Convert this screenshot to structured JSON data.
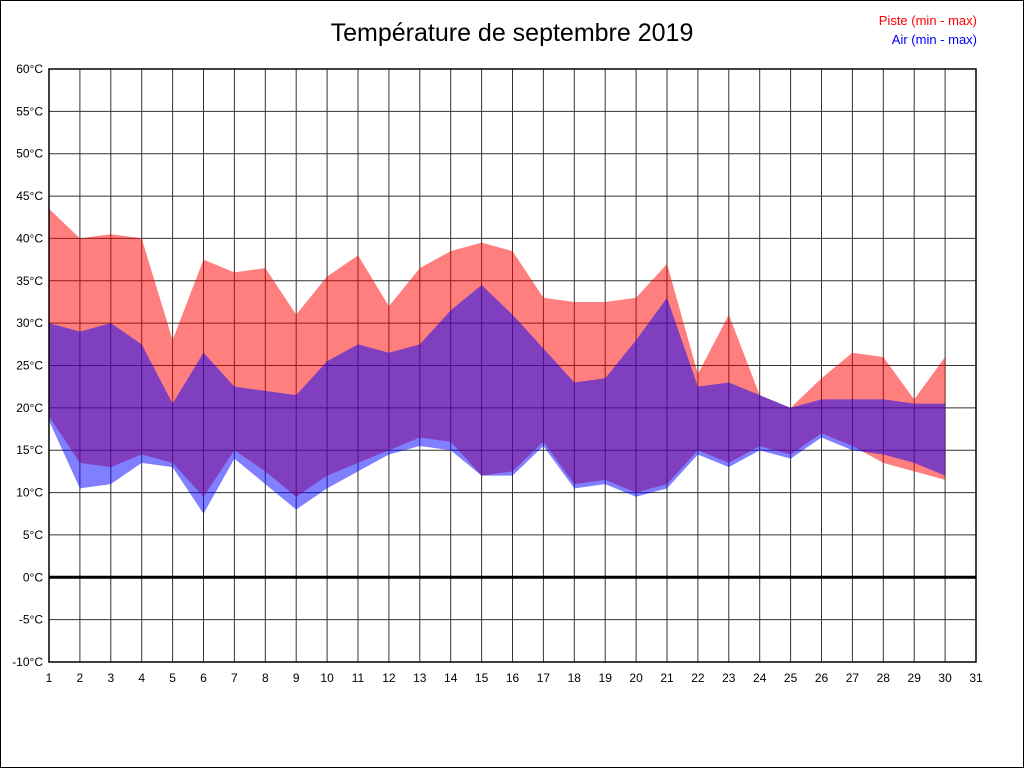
{
  "page": {
    "title": "Température de septembre 2019"
  },
  "legend": {
    "piste_label": "Piste (min - max)",
    "air_label": "Air (min - max)"
  },
  "chart_data": {
    "type": "area",
    "title": "Température de septembre 2019",
    "x_days": [
      1,
      2,
      3,
      4,
      5,
      6,
      7,
      8,
      9,
      10,
      11,
      12,
      13,
      14,
      15,
      16,
      17,
      18,
      19,
      20,
      21,
      22,
      23,
      24,
      25,
      26,
      27,
      28,
      29,
      30
    ],
    "x_axis_ticks": [
      1,
      2,
      3,
      4,
      5,
      6,
      7,
      8,
      9,
      10,
      11,
      12,
      13,
      14,
      15,
      16,
      17,
      18,
      19,
      20,
      21,
      22,
      23,
      24,
      25,
      26,
      27,
      28,
      29,
      30,
      31
    ],
    "y_ticks": [
      60,
      55,
      50,
      45,
      40,
      35,
      30,
      25,
      20,
      15,
      10,
      5,
      0,
      -5,
      -10
    ],
    "y_tick_suffix": "°C",
    "ylim": [
      -10,
      60
    ],
    "grid": true,
    "legend_position": "top-right",
    "zero_line": true,
    "series": [
      {
        "name": "Piste (min - max)",
        "color": "#ff0000",
        "fill_opacity": 0.5,
        "max": [
          43.5,
          40,
          40.5,
          40,
          28,
          37.5,
          36,
          36.5,
          31,
          35.5,
          38,
          32,
          36.5,
          38.5,
          39.5,
          38.5,
          33,
          32.5,
          32.5,
          33,
          37,
          24,
          31,
          21.5,
          20,
          23.5,
          26.5,
          26,
          21,
          26
        ],
        "min": [
          19,
          13.5,
          13,
          14.5,
          13.5,
          9.5,
          15,
          12.5,
          9.5,
          12,
          13.5,
          15,
          16.5,
          16,
          12,
          12.5,
          16,
          11,
          11.5,
          10,
          11,
          15,
          13.5,
          15.5,
          14.5,
          17,
          15.5,
          13.5,
          12.5,
          11.5
        ]
      },
      {
        "name": "Air (min - max)",
        "color": "#0000ff",
        "fill_opacity": 0.5,
        "max": [
          30,
          29,
          30,
          27.5,
          20.5,
          26.5,
          22.5,
          22,
          21.5,
          25.5,
          27.5,
          26.5,
          27.5,
          31.5,
          34.5,
          31,
          27,
          23,
          23.5,
          28,
          33,
          22.5,
          23,
          21.5,
          20,
          21,
          21,
          21,
          20.5,
          20.5
        ],
        "min": [
          18.5,
          10.5,
          11,
          13.5,
          13,
          7.5,
          14,
          11,
          8,
          10.5,
          12.5,
          14.5,
          15.5,
          15,
          12,
          12,
          15.5,
          10.5,
          11,
          9.5,
          10.5,
          14.5,
          13,
          15,
          14,
          16.5,
          15,
          14.5,
          13.5,
          12
        ]
      }
    ]
  }
}
